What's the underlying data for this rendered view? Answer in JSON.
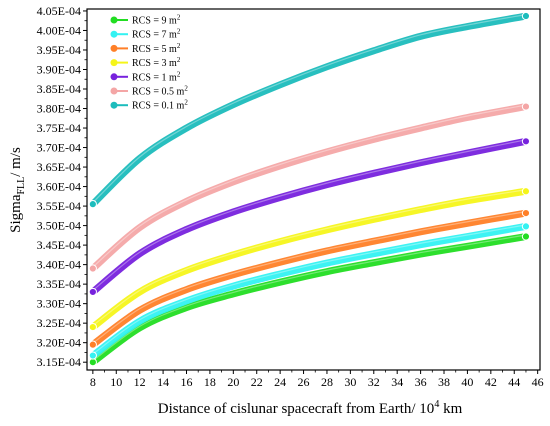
{
  "chart_data": {
    "type": "line",
    "title": "",
    "xlabel": "Distance of cislunar spacecraft from Earth/ 10",
    "xlabel_sup": "4",
    "xlabel_suffix": " km",
    "ylabel_main": "Sigma",
    "ylabel_sub": "FLL",
    "ylabel_suffix": "/ m/s",
    "xlim": [
      7.5,
      46.2
    ],
    "ylim": [
      0.000313,
      0.0004055
    ],
    "x_ticks": [
      8,
      10,
      12,
      14,
      16,
      18,
      20,
      22,
      24,
      26,
      28,
      30,
      32,
      34,
      36,
      38,
      40,
      42,
      44,
      46
    ],
    "x_tick_labels": [
      "8",
      "10",
      "12",
      "14",
      "16",
      "18",
      "20",
      "22",
      "24",
      "26",
      "28",
      "30",
      "32",
      "34",
      "36",
      "38",
      "40",
      "42",
      "44",
      "46"
    ],
    "y_ticks": [
      0.000315,
      0.00032,
      0.000325,
      0.00033,
      0.000335,
      0.00034,
      0.000345,
      0.00035,
      0.000355,
      0.00036,
      0.000365,
      0.00037,
      0.000375,
      0.00038,
      0.000385,
      0.00039,
      0.000395,
      0.0004,
      0.000405
    ],
    "y_tick_labels": [
      "3.15E-04",
      "3.20E-04",
      "3.25E-04",
      "3.30E-04",
      "3.35E-04",
      "3.40E-04",
      "3.45E-04",
      "3.50E-04",
      "3.55E-04",
      "3.60E-04",
      "3.65E-04",
      "3.70E-04",
      "3.75E-04",
      "3.80E-04",
      "3.85E-04",
      "3.90E-04",
      "3.95E-04",
      "4.00E-04",
      "4.05E-04"
    ],
    "grid": false,
    "legend_position": "top-left",
    "x": [
      8,
      12,
      16,
      20,
      24,
      28,
      32,
      36,
      40,
      45
    ],
    "series": [
      {
        "name": "RCS = 9 m",
        "sup": "2",
        "color": "#22dd22",
        "values": [
          0.000315,
          0.0003238,
          0.000329,
          0.0003325,
          0.0003355,
          0.0003382,
          0.0003405,
          0.0003427,
          0.0003447,
          0.0003472
        ]
      },
      {
        "name": "RCS = 7 m",
        "sup": "2",
        "color": "#33f2f2",
        "values": [
          0.0003167,
          0.0003255,
          0.0003307,
          0.0003345,
          0.0003376,
          0.0003404,
          0.0003428,
          0.0003451,
          0.0003472,
          0.0003498
        ]
      },
      {
        "name": "RCS = 5 m",
        "sup": "2",
        "color": "#ff7f27",
        "values": [
          0.0003195,
          0.0003283,
          0.0003336,
          0.0003374,
          0.0003406,
          0.0003435,
          0.000346,
          0.0003484,
          0.0003506,
          0.0003532
        ]
      },
      {
        "name": "RCS = 3 m",
        "sup": "2",
        "color": "#f5f51a",
        "values": [
          0.000324,
          0.000333,
          0.0003385,
          0.0003425,
          0.0003459,
          0.0003489,
          0.0003516,
          0.0003541,
          0.0003564,
          0.0003588
        ]
      },
      {
        "name": "RCS = 1 m",
        "sup": "2",
        "color": "#7722dd",
        "values": [
          0.000333,
          0.0003428,
          0.000349,
          0.0003535,
          0.0003572,
          0.0003605,
          0.0003634,
          0.0003661,
          0.0003686,
          0.0003716
        ]
      },
      {
        "name": "RCS = 0.5 m",
        "sup": "2",
        "color": "#f4a6a6",
        "values": [
          0.000339,
          0.0003495,
          0.0003562,
          0.0003612,
          0.0003653,
          0.0003689,
          0.0003721,
          0.000375,
          0.0003777,
          0.0003805
        ]
      },
      {
        "name": "RCS = 0.1 m",
        "sup": "2",
        "color": "#1cbcbc",
        "values": [
          0.0003555,
          0.0003672,
          0.000375,
          0.000381,
          0.0003861,
          0.0003907,
          0.0003948,
          0.0003985,
          0.000401,
          0.0004037
        ]
      }
    ]
  }
}
